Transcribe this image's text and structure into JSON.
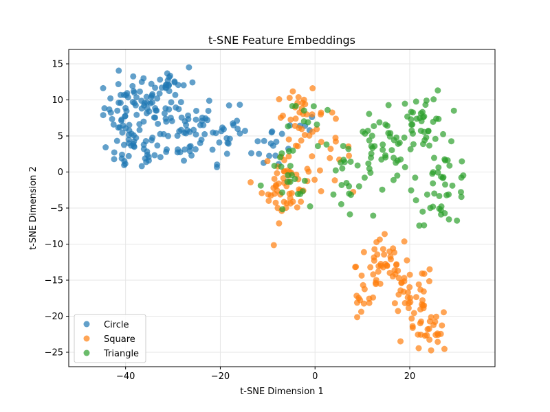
{
  "chart_data": {
    "type": "scatter",
    "title": "t-SNE Feature Embeddings",
    "xlabel": "t-SNE Dimension 1",
    "ylabel": "t-SNE Dimension 2",
    "xlim": [
      -52,
      38
    ],
    "ylim": [
      -27,
      17
    ],
    "xticks": [
      -40,
      -20,
      0,
      20
    ],
    "yticks": [
      -25,
      -20,
      -15,
      -10,
      -5,
      0,
      5,
      10,
      15
    ],
    "grid": true,
    "legend_position": "lower-left",
    "series": [
      {
        "name": "Circle",
        "color": "#1f77b4",
        "clusters": [
          {
            "cx": -37,
            "cy": 9,
            "sx": 5,
            "sy": 2.8,
            "n": 70
          },
          {
            "cx": -39,
            "cy": 3,
            "sx": 4,
            "sy": 2.2,
            "n": 35
          },
          {
            "cx": -28,
            "cy": 6,
            "sx": 5,
            "sy": 3.5,
            "n": 55
          },
          {
            "cx": -31,
            "cy": 12.5,
            "sx": 4,
            "sy": 1.8,
            "n": 20
          },
          {
            "cx": -18,
            "cy": 5,
            "sx": 3.5,
            "sy": 2.5,
            "n": 25
          },
          {
            "cx": -9,
            "cy": 4,
            "sx": 2.5,
            "sy": 2.5,
            "n": 12
          },
          {
            "cx": -3,
            "cy": 7,
            "sx": 1.5,
            "sy": 1,
            "n": 5
          }
        ]
      },
      {
        "name": "Square",
        "color": "#ff7f0e",
        "clusters": [
          {
            "cx": -6,
            "cy": -2,
            "sx": 3.5,
            "sy": 3.2,
            "n": 55
          },
          {
            "cx": -3,
            "cy": 8,
            "sx": 3.5,
            "sy": 2.2,
            "n": 30
          },
          {
            "cx": 3,
            "cy": 3,
            "sx": 3,
            "sy": 3,
            "n": 15
          },
          {
            "cx": 14,
            "cy": -13,
            "sx": 3.5,
            "sy": 3,
            "n": 40
          },
          {
            "cx": 20,
            "cy": -17,
            "sx": 3.5,
            "sy": 3,
            "n": 35
          },
          {
            "cx": 24,
            "cy": -22,
            "sx": 3,
            "sy": 2.2,
            "n": 30
          },
          {
            "cx": 10,
            "cy": -19,
            "sx": 2,
            "sy": 1.5,
            "n": 10
          }
        ]
      },
      {
        "name": "Triangle",
        "color": "#2ca02c",
        "clusters": [
          {
            "cx": 23,
            "cy": 7,
            "sx": 3.5,
            "sy": 3,
            "n": 40
          },
          {
            "cx": 27,
            "cy": -2,
            "sx": 4,
            "sy": 3.5,
            "n": 40
          },
          {
            "cx": 14,
            "cy": 3,
            "sx": 4,
            "sy": 3,
            "n": 40
          },
          {
            "cx": 6,
            "cy": 0,
            "sx": 3,
            "sy": 3.5,
            "n": 20
          },
          {
            "cx": -6,
            "cy": -2,
            "sx": 3.5,
            "sy": 4,
            "n": 20
          },
          {
            "cx": -1,
            "cy": 7,
            "sx": 3,
            "sy": 2.5,
            "n": 10
          }
        ]
      }
    ]
  }
}
